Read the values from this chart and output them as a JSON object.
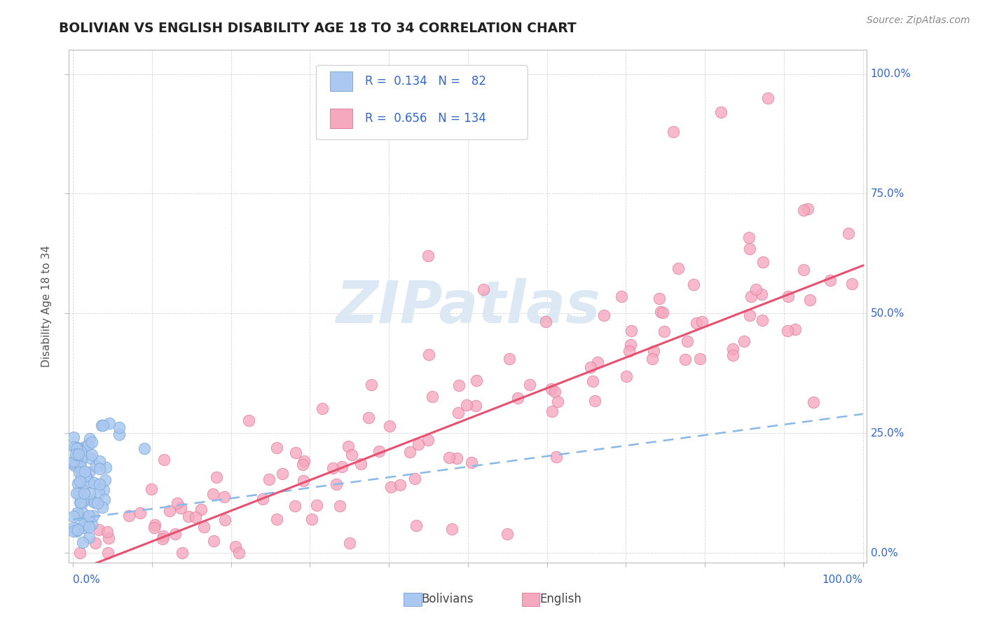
{
  "title": "BOLIVIAN VS ENGLISH DISABILITY AGE 18 TO 34 CORRELATION CHART",
  "source": "Source: ZipAtlas.com",
  "ylabel": "Disability Age 18 to 34",
  "ytick_labels": [
    "0.0%",
    "25.0%",
    "50.0%",
    "75.0%",
    "100.0%"
  ],
  "ytick_values": [
    0.0,
    0.25,
    0.5,
    0.75,
    1.0
  ],
  "bolivians_color": "#aac8f0",
  "bolivians_edge": "#80aad8",
  "english_color": "#f5a8be",
  "english_edge": "#e080a0",
  "trend_blue_color": "#88b8e8",
  "trend_pink_color": "#e85070",
  "background_color": "#ffffff",
  "grid_color": "#cccccc",
  "watermark_color": "#dde8f5",
  "title_color": "#222222",
  "legend_text_color": "#3366cc",
  "axis_label_color": "#3366cc",
  "source_color": "#888888",
  "ylabel_color": "#555555",
  "legend_box_color": "#f0f4fa",
  "legend_border_color": "#cccccc"
}
